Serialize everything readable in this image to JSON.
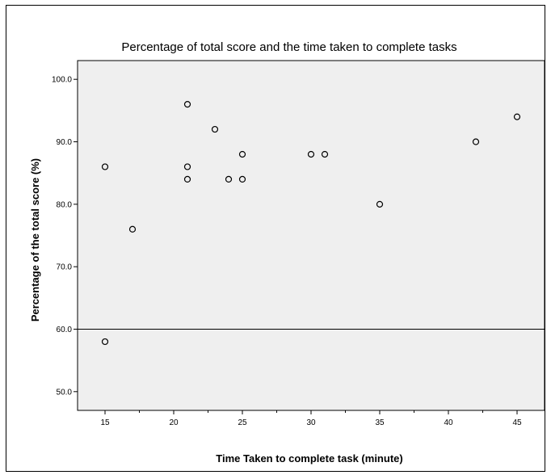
{
  "chart_data": {
    "type": "scatter",
    "title": "Percentage of total score and the time taken to complete tasks",
    "xlabel": "Time Taken to complete task (minute)",
    "ylabel": "Percentage of the total score (%)",
    "xlim": [
      13,
      47
    ],
    "ylim": [
      47,
      103
    ],
    "xticks": [
      15,
      20,
      25,
      30,
      35,
      40,
      45
    ],
    "yticks": [
      50.0,
      60.0,
      70.0,
      80.0,
      90.0,
      100.0
    ],
    "xtick_labels": [
      "15",
      "20",
      "25",
      "30",
      "35",
      "40",
      "45"
    ],
    "ytick_labels": [
      "50.0",
      "60.0",
      "70.0",
      "80.0",
      "90.0",
      "100.0"
    ],
    "reference_line_y": 60,
    "grid": false,
    "plot_background": "#efefef",
    "marker_color": "#000000",
    "points": [
      {
        "x": 15,
        "y": 86
      },
      {
        "x": 15,
        "y": 58
      },
      {
        "x": 17,
        "y": 76
      },
      {
        "x": 21,
        "y": 96
      },
      {
        "x": 21,
        "y": 86
      },
      {
        "x": 21,
        "y": 84
      },
      {
        "x": 23,
        "y": 92
      },
      {
        "x": 24,
        "y": 84
      },
      {
        "x": 25,
        "y": 88
      },
      {
        "x": 25,
        "y": 84
      },
      {
        "x": 30,
        "y": 88
      },
      {
        "x": 31,
        "y": 88
      },
      {
        "x": 35,
        "y": 80
      },
      {
        "x": 42,
        "y": 90
      },
      {
        "x": 45,
        "y": 94
      }
    ]
  }
}
